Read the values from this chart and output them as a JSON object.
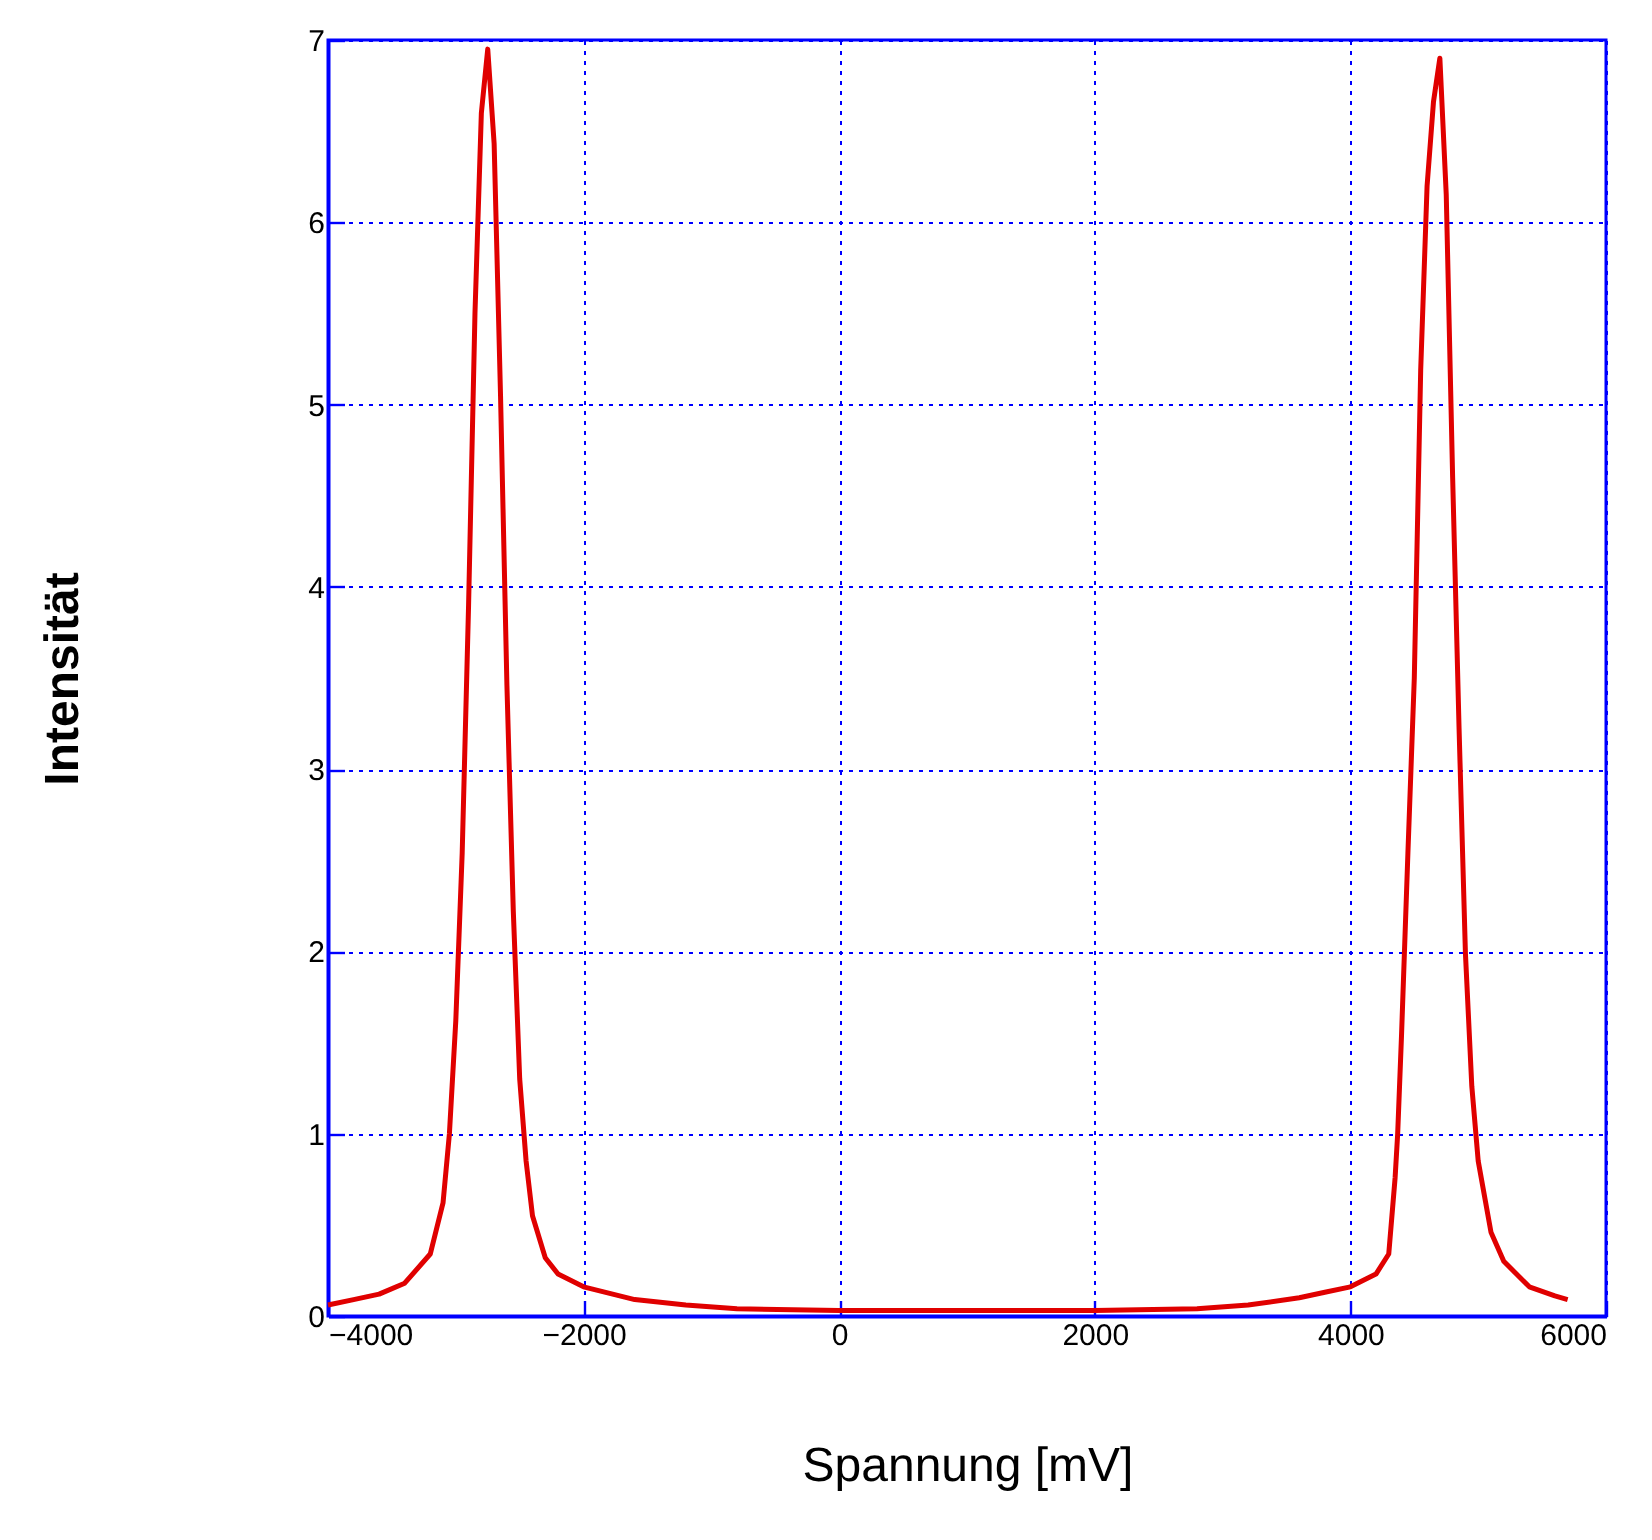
{
  "chart_data": {
    "type": "line",
    "xlabel": "Spannung [mV]",
    "ylabel": "Intensität",
    "xlim": [
      -4000,
      6000
    ],
    "ylim": [
      0,
      7
    ],
    "xticks": [
      -4000,
      -2000,
      0,
      2000,
      4000,
      6000
    ],
    "yticks": [
      0,
      1,
      2,
      3,
      4,
      5,
      6,
      7
    ],
    "grid": true,
    "marker": "none",
    "line_style": "solid",
    "series": [
      {
        "color": "#e00000",
        "x": [
          -4000,
          -3800,
          -3600,
          -3400,
          -3200,
          -3100,
          -3050,
          -3000,
          -2950,
          -2900,
          -2850,
          -2800,
          -2750,
          -2700,
          -2650,
          -2600,
          -2550,
          -2500,
          -2450,
          -2400,
          -2300,
          -2200,
          -2000,
          -1600,
          -1200,
          -800,
          0,
          1000,
          2000,
          2800,
          3200,
          3600,
          3800,
          4000,
          4200,
          4300,
          4350,
          4370,
          4400,
          4450,
          4500,
          4550,
          4600,
          4650,
          4700,
          4750,
          4800,
          4850,
          4900,
          4950,
          5000,
          5100,
          5200,
          5400,
          5600,
          5700
        ],
        "values": [
          0.06,
          0.09,
          0.12,
          0.18,
          0.34,
          0.62,
          1.0,
          1.62,
          2.54,
          3.9,
          5.5,
          6.6,
          6.95,
          6.43,
          5.05,
          3.46,
          2.22,
          1.3,
          0.85,
          0.55,
          0.32,
          0.23,
          0.16,
          0.09,
          0.06,
          0.04,
          0.03,
          0.03,
          0.03,
          0.04,
          0.06,
          0.1,
          0.13,
          0.16,
          0.23,
          0.34,
          0.76,
          1.0,
          1.54,
          2.54,
          3.5,
          5.19,
          6.2,
          6.66,
          6.9,
          6.15,
          4.6,
          3.23,
          1.99,
          1.26,
          0.85,
          0.46,
          0.3,
          0.16,
          0.11,
          0.09
        ]
      }
    ]
  }
}
